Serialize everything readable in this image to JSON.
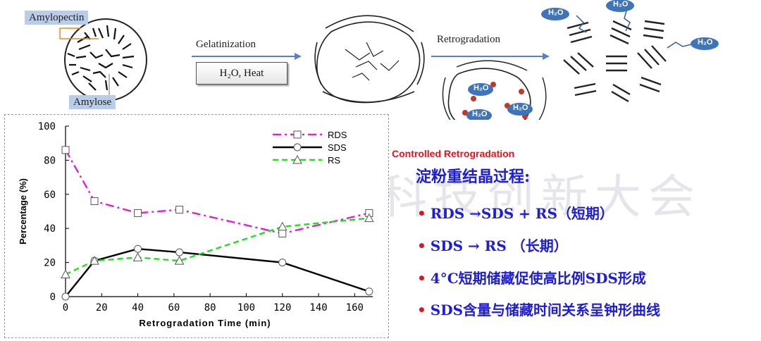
{
  "watermark": {
    "text": "科技创新大会"
  },
  "diagram": {
    "amylopectin_label": "Amylopectin",
    "amylose_label": "Amylose",
    "gelatinization_label": "Gelatinization",
    "condition_label": "H₂O, Heat",
    "retrogradation_label": "Retrogradation",
    "controlled_label": "Controlled Retrogradation",
    "water_label": "H₂O"
  },
  "chart_data": {
    "type": "line",
    "xlabel": "Retrogradation Time (min)",
    "ylabel": "Percentage (%)",
    "xlim": [
      0,
      170
    ],
    "ylim": [
      0,
      100
    ],
    "xticks": [
      0,
      20,
      40,
      60,
      80,
      100,
      120,
      140,
      160
    ],
    "yticks": [
      0,
      20,
      40,
      60,
      80,
      100
    ],
    "legend_position": "top-right",
    "series": [
      {
        "name": "RDS",
        "color": "#dd22cc",
        "dash": "dashdot",
        "marker": "square",
        "x": [
          0,
          16,
          40,
          63,
          120,
          168
        ],
        "y": [
          86,
          56,
          49,
          51,
          37,
          49
        ]
      },
      {
        "name": "SDS",
        "color": "#000000",
        "dash": "solid",
        "marker": "circle",
        "x": [
          0,
          16,
          40,
          63,
          120,
          168
        ],
        "y": [
          0,
          21,
          28,
          26,
          20,
          3
        ]
      },
      {
        "name": "RS",
        "color": "#22dd22",
        "dash": "dashed",
        "marker": "triangle",
        "x": [
          0,
          16,
          40,
          63,
          120,
          168
        ],
        "y": [
          13,
          21,
          23,
          21,
          41,
          46
        ]
      }
    ]
  },
  "notes": {
    "title": "淀粉重结晶过程:",
    "bullet_symbol": "•",
    "items": [
      "RDS →SDS + RS（短期）",
      "SDS → RS （长期）",
      "4°C短期储藏促使高比例SDS形成",
      "SDS含量与储藏时间关系呈钟形曲线"
    ]
  }
}
